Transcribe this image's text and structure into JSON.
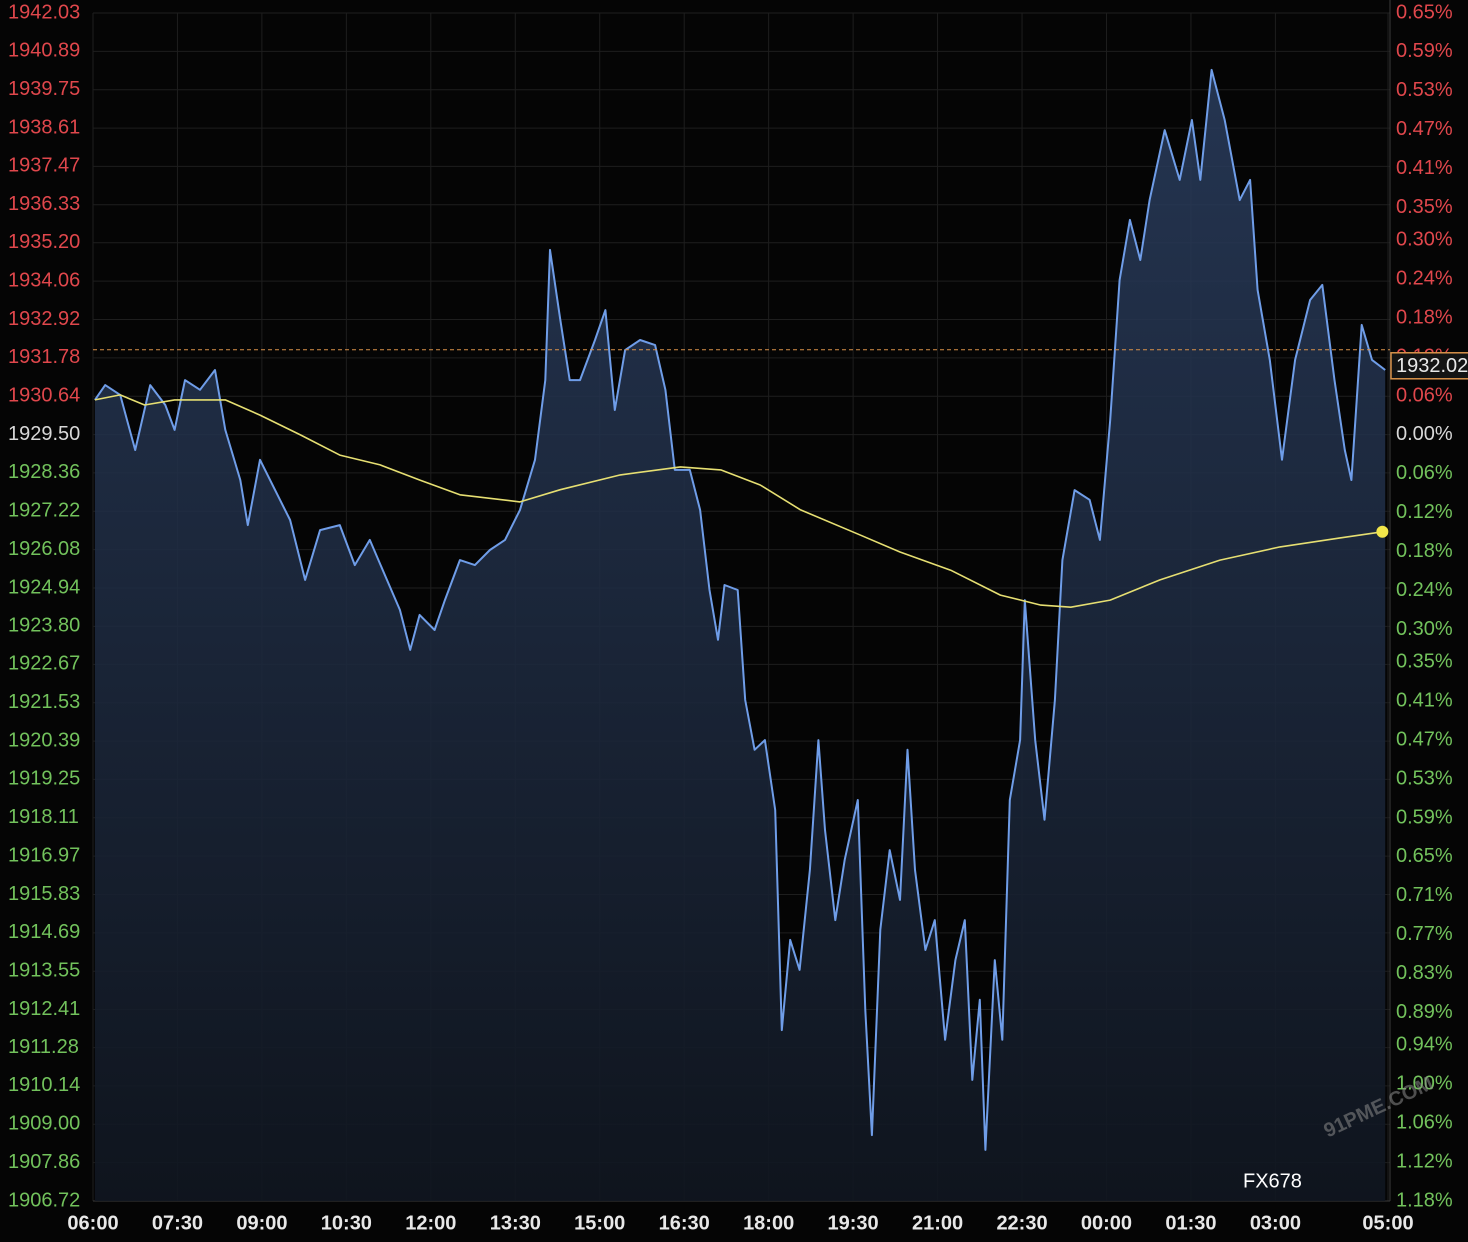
{
  "chart_data": {
    "type": "line",
    "xlim": [
      0,
      1380
    ],
    "xticks": [
      {
        "value": 0,
        "label": "06:00"
      },
      {
        "value": 90,
        "label": "07:30"
      },
      {
        "value": 180,
        "label": "09:00"
      },
      {
        "value": 270,
        "label": "10:30"
      },
      {
        "value": 360,
        "label": "12:00"
      },
      {
        "value": 450,
        "label": "13:30"
      },
      {
        "value": 540,
        "label": "15:00"
      },
      {
        "value": 630,
        "label": "16:30"
      },
      {
        "value": 720,
        "label": "18:00"
      },
      {
        "value": 810,
        "label": "19:30"
      },
      {
        "value": 900,
        "label": "21:00"
      },
      {
        "value": 990,
        "label": "22:30"
      },
      {
        "value": 1080,
        "label": "00:00"
      },
      {
        "value": 1170,
        "label": "01:30"
      },
      {
        "value": 1260,
        "label": "03:00"
      },
      {
        "value": 1380,
        "label": "05:00"
      }
    ],
    "ylim": [
      1906.72,
      1942.03
    ],
    "yticks": [
      1942.03,
      1940.89,
      1939.75,
      1938.61,
      1937.47,
      1936.33,
      {
        "value": 1935.2,
        "label": "1935.20"
      },
      1934.06,
      1932.92,
      1931.78,
      1930.64,
      {
        "value": 1929.5,
        "label": "1929.50"
      },
      1928.36,
      1927.22,
      1926.08,
      1924.94,
      {
        "value": 1923.8,
        "label": "1923.80"
      },
      1922.67,
      1921.53,
      1920.39,
      1919.25,
      1918.11,
      1916.97,
      1915.83,
      1914.69,
      1913.55,
      1912.41,
      1911.28,
      1910.14,
      {
        "value": 1909,
        "label": "1909.00"
      },
      1907.86,
      1906.72
    ],
    "y2lim": [
      -1.18,
      0.65
    ],
    "y2ticks": [
      {
        "value": 0.65,
        "label": "0.65%"
      },
      {
        "value": 0.59,
        "label": "0.59%"
      },
      {
        "value": 0.53,
        "label": "0.53%"
      },
      {
        "value": 0.47,
        "label": "0.47%"
      },
      {
        "value": 0.41,
        "label": "0.41%"
      },
      {
        "value": 0.35,
        "label": "0.35%"
      },
      {
        "value": 0.3,
        "label": "0.30%"
      },
      {
        "value": 0.24,
        "label": "0.24%"
      },
      {
        "value": 0.18,
        "label": "0.18%"
      },
      {
        "value": 0.12,
        "label": "0.12%"
      },
      {
        "value": 0.06,
        "label": "0.06%"
      },
      {
        "value": 0,
        "label": "0.00%"
      },
      {
        "value": -0.06,
        "label": "0.06%"
      },
      {
        "value": -0.12,
        "label": "0.12%"
      },
      {
        "value": -0.18,
        "label": "0.18%"
      },
      {
        "value": -0.24,
        "label": "0.24%"
      },
      {
        "value": -0.3,
        "label": "0.30%"
      },
      {
        "value": -0.35,
        "label": "0.35%"
      },
      {
        "value": -0.41,
        "label": "0.41%"
      },
      {
        "value": -0.47,
        "label": "0.47%"
      },
      {
        "value": -0.53,
        "label": "0.53%"
      },
      {
        "value": -0.59,
        "label": "0.59%"
      },
      {
        "value": -0.65,
        "label": "0.65%"
      },
      {
        "value": -0.71,
        "label": "0.71%"
      },
      {
        "value": -0.77,
        "label": "0.77%"
      },
      {
        "value": -0.83,
        "label": "0.83%"
      },
      {
        "value": -0.89,
        "label": "0.89%"
      },
      {
        "value": -0.94,
        "label": "0.94%"
      },
      {
        "value": -1.0,
        "label": "1.00%"
      },
      {
        "value": -1.06,
        "label": "1.06%"
      },
      {
        "value": -1.12,
        "label": "1.12%"
      },
      {
        "value": -1.18,
        "label": "1.18%"
      }
    ],
    "grid": true,
    "last_price": 1932.02,
    "watermark": "FX678",
    "watermark_site": "91PME.COM",
    "series": [
      {
        "color": "#6f9de8",
        "x": [
          2,
          13,
          29,
          45,
          61,
          77,
          87,
          98,
          114,
          130,
          141,
          157,
          165,
          178,
          194,
          210,
          226,
          242,
          263,
          279,
          295,
          311,
          327,
          338,
          348,
          364,
          375,
          391,
          407,
          423,
          439,
          455,
          471,
          482,
          487,
          498,
          508,
          519,
          535,
          546,
          556,
          567,
          583,
          599,
          610,
          620,
          636,
          647,
          657,
          666,
          673,
          687,
          695,
          705,
          716,
          727,
          734,
          743,
          753,
          764,
          773,
          780,
          791,
          801,
          815,
          823,
          830,
          839,
          849,
          860,
          868,
          876,
          887,
          897,
          908,
          919,
          929,
          937,
          945,
          951,
          961,
          969,
          977,
          988,
          993,
          1004,
          1014,
          1025,
          1033,
          1046,
          1062,
          1073,
          1084,
          1094,
          1105,
          1116,
          1126,
          1142,
          1158,
          1171,
          1180,
          1192,
          1206,
          1222,
          1233,
          1241,
          1254,
          1267,
          1281,
          1297,
          1310,
          1323,
          1334,
          1341,
          1352,
          1363,
          1377
        ],
        "values": [
          1930.53,
          1930.97,
          1930.68,
          1929.04,
          1930.97,
          1930.38,
          1929.64,
          1931.12,
          1930.83,
          1931.42,
          1929.64,
          1928.15,
          1926.81,
          1928.75,
          1927.85,
          1926.96,
          1925.18,
          1926.66,
          1926.81,
          1925.62,
          1926.37,
          1925.33,
          1924.29,
          1923.1,
          1924.14,
          1923.69,
          1924.58,
          1925.77,
          1925.62,
          1926.07,
          1926.37,
          1927.26,
          1928.75,
          1931.12,
          1934.99,
          1932.91,
          1931.12,
          1931.12,
          1932.31,
          1933.2,
          1930.23,
          1932.01,
          1932.31,
          1932.16,
          1930.83,
          1928.45,
          1928.45,
          1927.26,
          1924.88,
          1923.4,
          1925.03,
          1924.88,
          1921.61,
          1920.13,
          1920.42,
          1918.34,
          1911.8,
          1914.48,
          1913.59,
          1916.56,
          1920.42,
          1917.75,
          1915.07,
          1916.86,
          1918.64,
          1912.4,
          1908.68,
          1914.78,
          1917.15,
          1915.67,
          1920.13,
          1916.56,
          1914.18,
          1915.07,
          1911.51,
          1913.88,
          1915.07,
          1910.32,
          1912.7,
          1908.24,
          1913.88,
          1911.51,
          1918.64,
          1920.42,
          1924.58,
          1920.42,
          1918.05,
          1921.61,
          1925.77,
          1927.85,
          1927.56,
          1926.37,
          1929.93,
          1934.09,
          1935.88,
          1934.69,
          1936.47,
          1938.55,
          1937.07,
          1938.85,
          1937.07,
          1940.34,
          1938.85,
          1936.47,
          1937.07,
          1933.8,
          1931.72,
          1928.75,
          1931.72,
          1933.5,
          1933.95,
          1931.12,
          1929.04,
          1928.15,
          1932.76,
          1931.72,
          1931.42
        ]
      },
      {
        "color": "#e6df72",
        "x": [
          2,
          29,
          55,
          87,
          141,
          178,
          221,
          263,
          306,
          348,
          391,
          455,
          498,
          562,
          626,
          669,
          711,
          754,
          818,
          860,
          914,
          967,
          1010,
          1042,
          1084,
          1137,
          1201,
          1265,
          1329,
          1374
        ],
        "values": [
          1930.53,
          1930.68,
          1930.38,
          1930.53,
          1930.53,
          1930.08,
          1929.49,
          1928.89,
          1928.6,
          1928.15,
          1927.71,
          1927.5,
          1927.86,
          1928.3,
          1928.54,
          1928.45,
          1928.0,
          1927.26,
          1926.51,
          1926.01,
          1925.47,
          1924.73,
          1924.43,
          1924.37,
          1924.58,
          1925.18,
          1925.77,
          1926.16,
          1926.43,
          1926.61
        ]
      }
    ]
  }
}
